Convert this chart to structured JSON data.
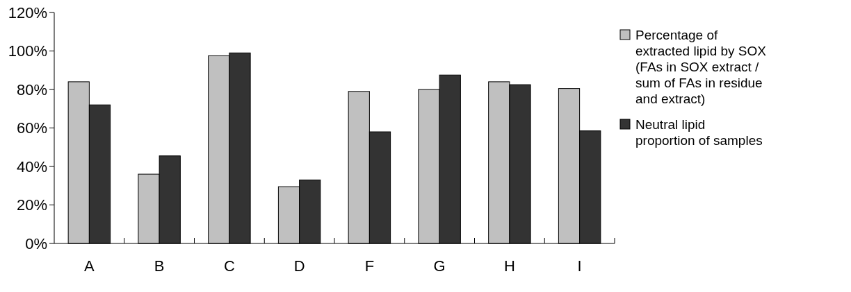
{
  "chart_data": {
    "type": "bar",
    "categories": [
      "A",
      "B",
      "C",
      "D",
      "F",
      "G",
      "H",
      "I"
    ],
    "series": [
      {
        "name": "Percentage of extracted lipid by SOX (FAs in SOX extract / sum of FAs in residue and extract)",
        "color": "#c0c0c0",
        "values": [
          84,
          36,
          97.5,
          29.5,
          79,
          80,
          84,
          80.5
        ]
      },
      {
        "name": "Neutral lipid proportion of samples",
        "color": "#333333",
        "values": [
          72,
          45.5,
          99,
          33,
          58,
          87.5,
          82.5,
          58.5
        ]
      }
    ],
    "ylim": [
      0,
      120
    ],
    "yticks": [
      {
        "value": 0,
        "label": "0%"
      },
      {
        "value": 20,
        "label": "20%"
      },
      {
        "value": 40,
        "label": "40%"
      },
      {
        "value": 60,
        "label": "60%"
      },
      {
        "value": 80,
        "label": "80%"
      },
      {
        "value": 100,
        "label": "100%"
      },
      {
        "value": 120,
        "label": "120%"
      }
    ],
    "legend": "right",
    "grid": false
  }
}
